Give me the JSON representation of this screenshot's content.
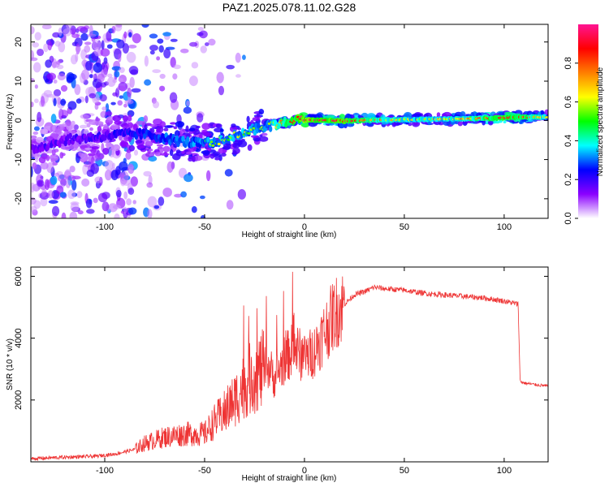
{
  "title": "PAZ1.2025.078.11.02.G28",
  "chart_data": [
    {
      "type": "heatmap",
      "xlabel": "Height of straight line (km)",
      "ylabel": "Frequency (Hz)",
      "xlim": [
        -137,
        122
      ],
      "ylim": [
        -25,
        24.5
      ],
      "xticks": [
        -100,
        -50,
        0,
        50,
        100
      ],
      "yticks": [
        -20,
        -10,
        0,
        10,
        20
      ],
      "colorbar": {
        "label": "Normalized spectral amplitude",
        "range": [
          0,
          1
        ],
        "ticks": [
          "0.0",
          "0.2",
          "0.4",
          "0.6",
          "0.8"
        ],
        "colors": [
          "#ffffff",
          "#8b00ff",
          "#0000ff",
          "#00ffff",
          "#00ff00",
          "#ffff00",
          "#ff7f00",
          "#ff0000",
          "#ff1493"
        ]
      },
      "ridge": {
        "x": [
          -137,
          -120,
          -100,
          -90,
          -80,
          -70,
          -60,
          -50,
          -40,
          -30,
          -20,
          -15,
          -10,
          -5,
          0,
          10,
          20,
          30,
          50,
          70,
          90,
          100,
          110,
          122
        ],
        "y": [
          -7.5,
          -5,
          -4,
          -3.5,
          -3.5,
          -4.5,
          -5.5,
          -6,
          -5,
          -3,
          -1.5,
          -1.2,
          -0.5,
          0,
          0.2,
          0,
          -0.2,
          0,
          0.2,
          0.3,
          0.5,
          0.7,
          0.8,
          0.8
        ],
        "amplitude": [
          0.2,
          0.2,
          0.25,
          0.3,
          0.35,
          0.4,
          0.45,
          0.45,
          0.5,
          0.5,
          0.45,
          0.55,
          0.7,
          0.8,
          0.9,
          0.8,
          0.85,
          0.7,
          0.55,
          0.55,
          0.7,
          0.8,
          0.75,
          0.5
        ]
      },
      "noise_region_x": [
        -137,
        -85
      ]
    },
    {
      "type": "line",
      "xlabel": "Height of straight line (km)",
      "ylabel": "SNR (10 * v/v)",
      "xlim": [
        -137,
        122
      ],
      "ylim": [
        0,
        6300
      ],
      "xticks": [
        -100,
        -50,
        0,
        50,
        100
      ],
      "yticks": [
        2000,
        4000,
        6000
      ],
      "color": "#ee3333",
      "series": [
        {
          "x": [
            -137,
            -120,
            -105,
            -95,
            -85,
            -80,
            -75,
            -70,
            -60,
            -50,
            -45,
            -40,
            -35,
            -30,
            -25,
            -20,
            -18,
            -15,
            -10,
            -5,
            0,
            5,
            10,
            15,
            20,
            25,
            30,
            35,
            40,
            50,
            60,
            70,
            80,
            90,
            100,
            107,
            108,
            110,
            115,
            122
          ],
          "y": [
            100,
            150,
            180,
            250,
            400,
            600,
            700,
            800,
            900,
            900,
            1300,
            1600,
            2000,
            2500,
            2800,
            3000,
            3100,
            2700,
            3300,
            3700,
            3300,
            3600,
            4200,
            4800,
            5100,
            5400,
            5500,
            5650,
            5600,
            5550,
            5450,
            5400,
            5350,
            5300,
            5200,
            5100,
            2600,
            2550,
            2500,
            2450
          ]
        }
      ]
    }
  ]
}
